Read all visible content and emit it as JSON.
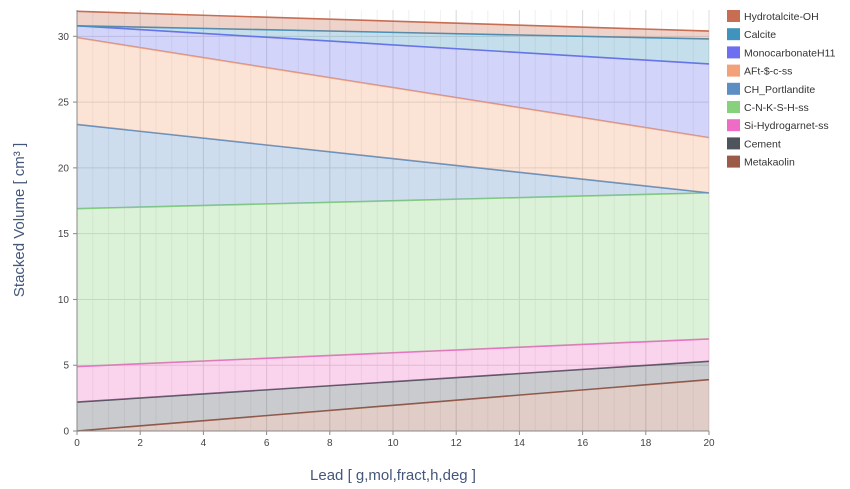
{
  "chart_data": {
    "type": "area",
    "stacked": true,
    "xlabel": "Lead [ g,mol,fract,h,deg ]",
    "ylabel": "Stacked Volume [ cm³ ]",
    "xlim": [
      0,
      20
    ],
    "ylim": [
      0,
      32
    ],
    "x_ticks": [
      0,
      2,
      4,
      6,
      8,
      10,
      12,
      14,
      16,
      18,
      20
    ],
    "y_ticks": [
      0,
      5,
      10,
      15,
      20,
      25,
      30
    ],
    "grid": true,
    "legend_position": "right",
    "x": [
      0,
      20
    ],
    "series": [
      {
        "name": "Metakaolin",
        "color": "#9c5b48",
        "values": [
          0.0,
          3.9
        ]
      },
      {
        "name": "Cement",
        "color": "#4d545c",
        "values": [
          2.2,
          1.4
        ]
      },
      {
        "name": "Si-Hydrogarnet-ss",
        "color": "#ee6cc4",
        "values": [
          2.7,
          1.7
        ]
      },
      {
        "name": "C-N-K-S-H-ss",
        "color": "#87d17d",
        "values": [
          12.0,
          11.1
        ]
      },
      {
        "name": "CH_Portlandite",
        "color": "#5b8ec2",
        "values": [
          6.4,
          0.0
        ]
      },
      {
        "name": "AFt-$-c-ss",
        "color": "#f3a178",
        "values": [
          6.6,
          4.2
        ]
      },
      {
        "name": "MonocarbonateH11",
        "color": "#6e6ff0",
        "values": [
          0.9,
          5.6
        ]
      },
      {
        "name": "Calcite",
        "color": "#3f93bd",
        "values": [
          0.0,
          1.9
        ]
      },
      {
        "name": "Hydrotalcite-OH",
        "color": "#c76d52",
        "values": [
          1.1,
          0.6
        ]
      }
    ]
  }
}
